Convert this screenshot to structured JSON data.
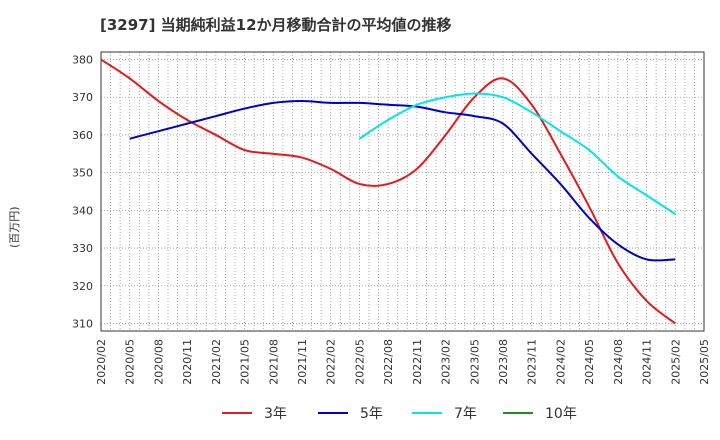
{
  "chart_data": {
    "type": "line",
    "title": "[3297]  当期純利益12か月移動合計の平均値の推移",
    "ylabel": "(百万円)",
    "xlabel": "",
    "ylim": [
      308,
      382
    ],
    "yticks": [
      310,
      320,
      330,
      340,
      350,
      360,
      370,
      380
    ],
    "x_ticks": [
      "2020/02",
      "2020/05",
      "2020/08",
      "2020/11",
      "2021/02",
      "2021/05",
      "2021/08",
      "2021/11",
      "2022/02",
      "2022/05",
      "2022/08",
      "2022/11",
      "2023/02",
      "2023/05",
      "2023/08",
      "2023/11",
      "2024/02",
      "2024/05",
      "2024/08",
      "2024/11",
      "2025/02",
      "2025/05"
    ],
    "grid": true,
    "legend_position": "bottom",
    "series": [
      {
        "name": "3年",
        "color": "#e41a1c",
        "points": [
          [
            "2020/02",
            380
          ],
          [
            "2020/05",
            375
          ],
          [
            "2020/08",
            369
          ],
          [
            "2020/11",
            364
          ],
          [
            "2021/02",
            360
          ],
          [
            "2021/05",
            356
          ],
          [
            "2021/08",
            355
          ],
          [
            "2021/11",
            354
          ],
          [
            "2022/02",
            351
          ],
          [
            "2022/05",
            347
          ],
          [
            "2022/08",
            347
          ],
          [
            "2022/11",
            351
          ],
          [
            "2023/02",
            360
          ],
          [
            "2023/05",
            370
          ],
          [
            "2023/08",
            375
          ],
          [
            "2023/11",
            368
          ],
          [
            "2024/02",
            355
          ],
          [
            "2024/05",
            341
          ],
          [
            "2024/08",
            326
          ],
          [
            "2024/11",
            316
          ],
          [
            "2025/02",
            310
          ]
        ]
      },
      {
        "name": "5年",
        "color": "#0000cc",
        "points": [
          [
            "2020/05",
            359
          ],
          [
            "2020/08",
            361
          ],
          [
            "2020/11",
            363
          ],
          [
            "2021/02",
            365
          ],
          [
            "2021/05",
            367
          ],
          [
            "2021/08",
            368.5
          ],
          [
            "2021/11",
            369
          ],
          [
            "2022/02",
            368.5
          ],
          [
            "2022/05",
            368.5
          ],
          [
            "2022/08",
            368
          ],
          [
            "2022/11",
            367.5
          ],
          [
            "2023/02",
            366
          ],
          [
            "2023/05",
            365
          ],
          [
            "2023/08",
            363
          ],
          [
            "2023/11",
            355
          ],
          [
            "2024/02",
            347
          ],
          [
            "2024/05",
            338
          ],
          [
            "2024/08",
            331
          ],
          [
            "2024/11",
            327
          ],
          [
            "2025/02",
            327
          ]
        ]
      },
      {
        "name": "7年",
        "color": "#00e5ee",
        "points": [
          [
            "2022/05",
            359
          ],
          [
            "2022/08",
            364
          ],
          [
            "2022/11",
            368
          ],
          [
            "2023/02",
            370
          ],
          [
            "2023/05",
            371
          ],
          [
            "2023/08",
            370
          ],
          [
            "2023/11",
            366
          ],
          [
            "2024/02",
            361
          ],
          [
            "2024/05",
            356
          ],
          [
            "2024/08",
            349
          ],
          [
            "2024/11",
            344
          ],
          [
            "2025/02",
            339
          ]
        ]
      },
      {
        "name": "10年",
        "color": "#228b22",
        "points": []
      }
    ]
  }
}
